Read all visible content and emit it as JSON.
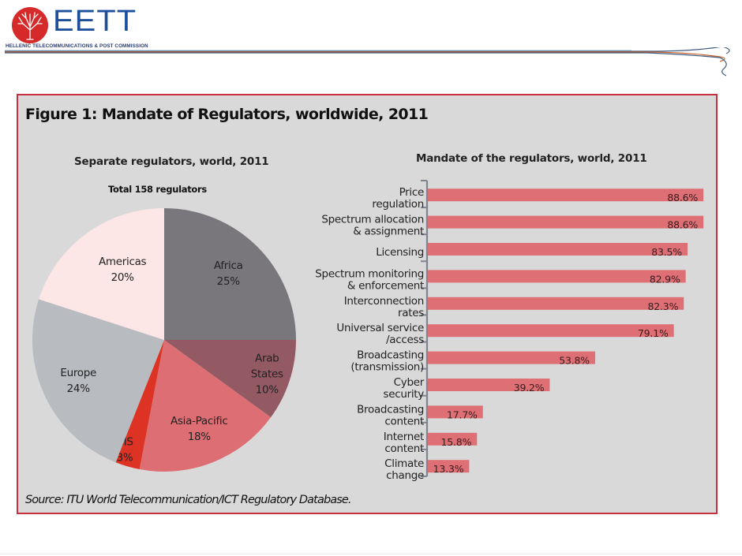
{
  "header": {
    "logo_text": "EETT",
    "logo_subtitle": "HELLENIC TELECOMMUNICATIONS & POST COMMISSION",
    "logo_icon": "tree-circle-icon",
    "brand_colors": {
      "blue": "#1d4f9c",
      "red": "#d62a2a",
      "orange": "#c8632a"
    }
  },
  "figure": {
    "title": "Figure 1: Mandate of Regulators, worldwide, 2011",
    "source": "Source: ITU World Telecommunication/ICT Regulatory Database.",
    "border_color": "#c8303f",
    "background_color": "#d9d9d9"
  },
  "chart_data": [
    {
      "type": "pie",
      "title": "Separate regulators, world, 2011",
      "subtitle": "Total 158 regulators",
      "start": "top",
      "direction": "clockwise",
      "slices": [
        {
          "label": "Africa",
          "value": 25,
          "value_label": "25%",
          "color": "#79777c"
        },
        {
          "label": "Arab States",
          "label_lines": [
            "Arab",
            "States"
          ],
          "value": 10,
          "value_label": "10%",
          "color": "#935a63"
        },
        {
          "label": "Asia-Pacific",
          "value": 18,
          "value_label": "18%",
          "color": "#dd6e73"
        },
        {
          "label": "CIS",
          "value": 3,
          "value_label": "3%",
          "color": "#dc3325"
        },
        {
          "label": "Europe",
          "value": 24,
          "value_label": "24%",
          "color": "#b8bbbf"
        },
        {
          "label": "Americas",
          "value": 20,
          "value_label": "20%",
          "color": "#fce6e6"
        }
      ]
    },
    {
      "type": "bar",
      "orientation": "horizontal",
      "title": "Mandate of the regulators, world, 2011",
      "xlabel": "",
      "ylabel": "",
      "xlim": [
        0,
        100
      ],
      "unit": "%",
      "bar_color": "#de6f74",
      "categories": [
        [
          "Price",
          "regulation"
        ],
        [
          "Spectrum allocation",
          "& assignment"
        ],
        [
          "Licensing"
        ],
        [
          "Spectrum  monitoring",
          "& enforcement"
        ],
        [
          "Interconnection",
          "rates"
        ],
        [
          "Universal service",
          "/access"
        ],
        [
          "Broadcasting",
          "(transmission)"
        ],
        [
          "Cyber",
          "security"
        ],
        [
          "Broadcasting",
          "content"
        ],
        [
          "Internet",
          "content"
        ],
        [
          "Climate",
          "change"
        ]
      ],
      "values": [
        88.6,
        88.6,
        83.5,
        82.9,
        82.3,
        79.1,
        53.8,
        39.2,
        17.7,
        15.8,
        13.3
      ],
      "value_labels": [
        "88.6%",
        "88.6%",
        "83.5%",
        "82.9%",
        "82.3%",
        "79.1%",
        "53.8%",
        "39.2%",
        "17.7%",
        "15.8%",
        "13.3%"
      ]
    }
  ]
}
